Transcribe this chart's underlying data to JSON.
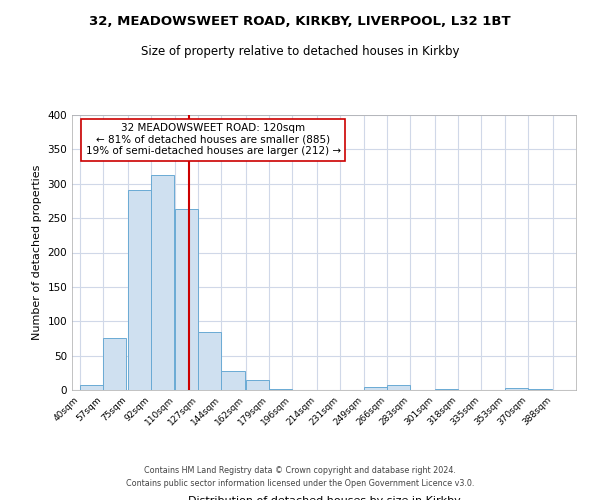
{
  "title1": "32, MEADOWSWEET ROAD, KIRKBY, LIVERPOOL, L32 1BT",
  "title2": "Size of property relative to detached houses in Kirkby",
  "xlabel": "Distribution of detached houses by size in Kirkby",
  "ylabel": "Number of detached properties",
  "bar_left_edges": [
    40,
    57,
    75,
    92,
    110,
    127,
    144,
    162,
    179,
    196,
    214,
    231,
    249,
    266,
    283,
    301,
    318,
    335,
    353,
    370
  ],
  "bar_heights": [
    8,
    76,
    291,
    313,
    263,
    85,
    28,
    15,
    1,
    0,
    0,
    0,
    5,
    8,
    0,
    2,
    0,
    0,
    3,
    2
  ],
  "bin_width": 17,
  "tick_labels": [
    "40sqm",
    "57sqm",
    "75sqm",
    "92sqm",
    "110sqm",
    "127sqm",
    "144sqm",
    "162sqm",
    "179sqm",
    "196sqm",
    "214sqm",
    "231sqm",
    "249sqm",
    "266sqm",
    "283sqm",
    "301sqm",
    "318sqm",
    "335sqm",
    "353sqm",
    "370sqm",
    "388sqm"
  ],
  "tick_positions": [
    40,
    57,
    75,
    92,
    110,
    127,
    144,
    162,
    179,
    196,
    214,
    231,
    249,
    266,
    283,
    301,
    318,
    335,
    353,
    370,
    388
  ],
  "property_line_x": 120,
  "bar_color": "#cfe0f0",
  "bar_edge_color": "#6aaad4",
  "line_color": "#cc0000",
  "ylim": [
    0,
    400
  ],
  "xlim": [
    34,
    405
  ],
  "annotation_text_line1": "32 MEADOWSWEET ROAD: 120sqm",
  "annotation_text_line2": "← 81% of detached houses are smaller (885)",
  "annotation_text_line3": "19% of semi-detached houses are larger (212) →",
  "footer1": "Contains HM Land Registry data © Crown copyright and database right 2024.",
  "footer2": "Contains public sector information licensed under the Open Government Licence v3.0.",
  "bg_color": "#ffffff",
  "plot_bg_color": "#ffffff",
  "grid_color": "#d0d8e8"
}
